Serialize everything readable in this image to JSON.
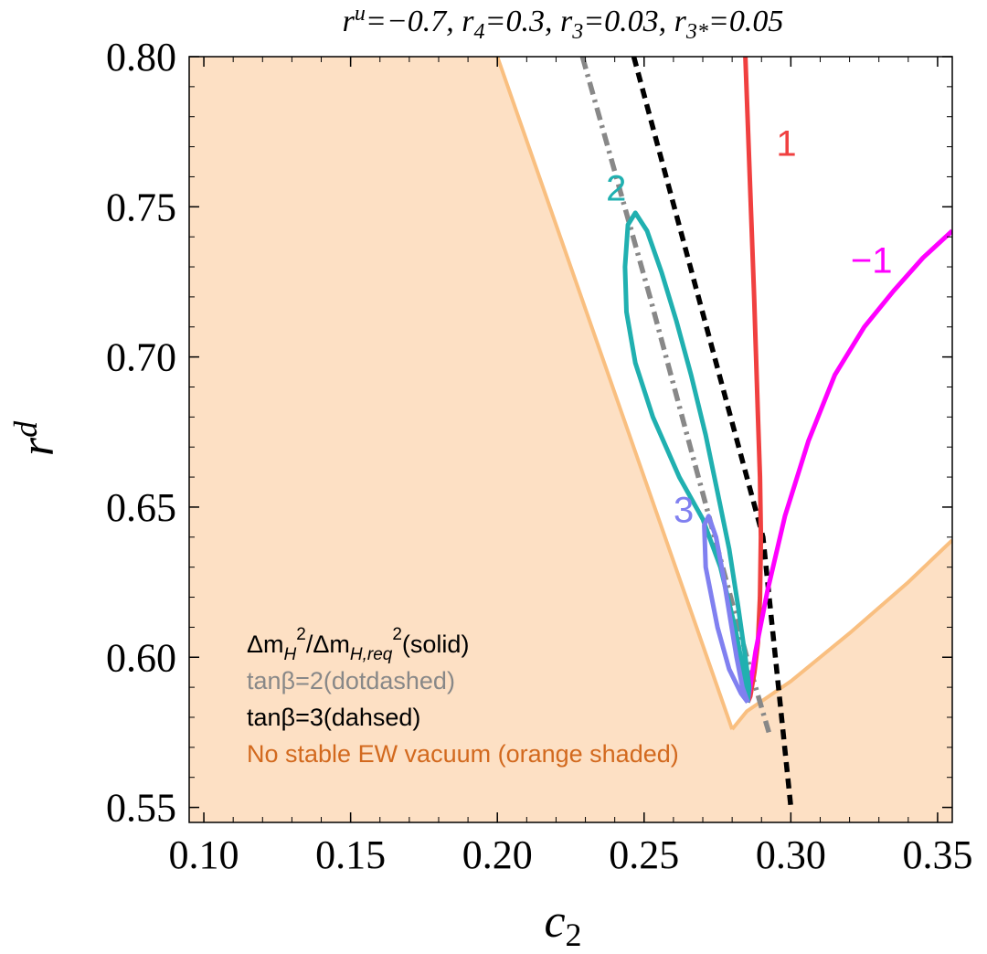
{
  "chart_data": {
    "type": "line",
    "title": "r^u=−0.7, r_4=0.3, r_3=0.03, r_{3*}=0.05",
    "xlabel": "c_2",
    "ylabel": "r^d",
    "xlim": [
      0.095,
      0.355
    ],
    "ylim": [
      0.545,
      0.8
    ],
    "x_ticks": [
      "0.10",
      "0.15",
      "0.20",
      "0.25",
      "0.30",
      "0.35"
    ],
    "y_ticks": [
      "0.55",
      "0.60",
      "0.65",
      "0.70",
      "0.75",
      "0.80"
    ],
    "grid": false,
    "shaded_region": {
      "name": "No stable EW vacuum (orange shaded)",
      "color": "#fde0c4",
      "edge_color": "#f9bf80",
      "left_boundary": [
        [
          0.2,
          0.8
        ],
        [
          0.28,
          0.576
        ]
      ],
      "right_boundary": [
        [
          0.28,
          0.576
        ],
        [
          0.285,
          0.582
        ],
        [
          0.3,
          0.592
        ],
        [
          0.32,
          0.608
        ],
        [
          0.34,
          0.625
        ],
        [
          0.355,
          0.639
        ]
      ]
    },
    "series": [
      {
        "name": "tanβ=2(dotdashed)",
        "color": "#888888",
        "style": "dotdashed",
        "x": [
          0.229,
          0.2405,
          0.252,
          0.263,
          0.274,
          0.285,
          0.2925
        ],
        "y": [
          0.8,
          0.76,
          0.72,
          0.68,
          0.64,
          0.6,
          0.575
        ]
      },
      {
        "name": "tanβ=3(dahsed)",
        "color": "#000000",
        "style": "dashed",
        "x": [
          0.2465,
          0.2575,
          0.2685,
          0.2795,
          0.2905,
          0.3
        ],
        "y": [
          0.8,
          0.76,
          0.72,
          0.68,
          0.64,
          0.55
        ]
      },
      {
        "name": "ΔmH²/ΔmH,req² = 1",
        "label": "1",
        "color": "#f04040",
        "style": "solid",
        "x": [
          0.2845,
          0.286,
          0.2875,
          0.2888,
          0.2895,
          0.2898,
          0.2895,
          0.2888,
          0.2876,
          0.2862,
          0.2853
        ],
        "y": [
          0.8,
          0.76,
          0.72,
          0.68,
          0.66,
          0.64,
          0.62,
          0.605,
          0.595,
          0.587,
          0.585
        ]
      },
      {
        "name": "ΔmH²/ΔmH,req² = −1",
        "label": "−1",
        "color": "#ff00ff",
        "style": "solid",
        "x": [
          0.2853,
          0.288,
          0.292,
          0.298,
          0.306,
          0.315,
          0.325,
          0.335,
          0.345,
          0.355
        ],
        "y": [
          0.585,
          0.602,
          0.622,
          0.647,
          0.672,
          0.694,
          0.71,
          0.722,
          0.733,
          0.742
        ]
      },
      {
        "name": "ΔmH²/ΔmH,req² = 2",
        "label": "2",
        "color": "#20b0b0",
        "style": "solid",
        "x": [
          0.2853,
          0.2845,
          0.281,
          0.276,
          0.27,
          0.262,
          0.253,
          0.247,
          0.244,
          0.2435,
          0.2445,
          0.247,
          0.251,
          0.256,
          0.261,
          0.266,
          0.271,
          0.275,
          0.279,
          0.282,
          0.2845,
          0.2858,
          0.2853
        ],
        "y": [
          0.585,
          0.592,
          0.61,
          0.63,
          0.646,
          0.66,
          0.68,
          0.698,
          0.715,
          0.73,
          0.744,
          0.748,
          0.742,
          0.728,
          0.712,
          0.694,
          0.674,
          0.655,
          0.636,
          0.617,
          0.6,
          0.59,
          0.585
        ]
      },
      {
        "name": "ΔmH²/ΔmH,req² = 3",
        "label": "3",
        "color": "#8080f0",
        "style": "solid",
        "x": [
          0.2853,
          0.283,
          0.279,
          0.275,
          0.271,
          0.2705,
          0.272,
          0.2745,
          0.277,
          0.2795,
          0.2815,
          0.2835,
          0.2853
        ],
        "y": [
          0.585,
          0.588,
          0.596,
          0.61,
          0.63,
          0.644,
          0.647,
          0.64,
          0.627,
          0.612,
          0.6,
          0.59,
          0.585
        ]
      }
    ],
    "legend": [
      {
        "text": "ΔmH²/ΔmH,req²(solid)",
        "color": "#000000"
      },
      {
        "text": "tanβ=2(dotdashed)",
        "color": "#888888"
      },
      {
        "text": "tanβ=3(dahsed)",
        "color": "#000000"
      },
      {
        "text": "No stable EW vacuum (orange shaded)",
        "color": "#d2691e"
      }
    ],
    "legend_position": "bottom-left"
  }
}
